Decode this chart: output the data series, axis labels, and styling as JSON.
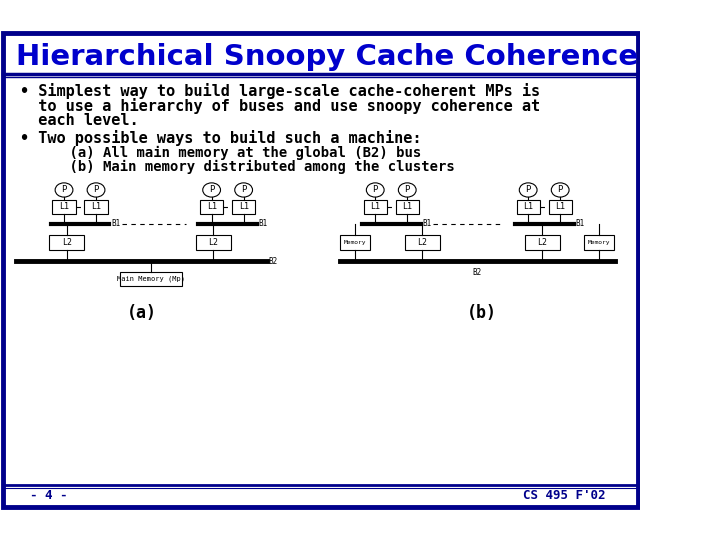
{
  "title": "Hierarchical Snoopy Cache Coherence",
  "title_color": "#0000CC",
  "bg_color": "#FFFFFF",
  "border_color": "#00008B",
  "bullet1_line1": "• Simplest way to build large-scale cache-coherent MPs is",
  "bullet1_line2": "  to use a hierarchy of buses and use snoopy coherence at",
  "bullet1_line3": "  each level.",
  "bullet2": "• Two possible ways to build such a machine:",
  "sub_a": "    (a) All main memory at the global (B2) bus",
  "sub_b": "    (b) Main memory distributed among the clusters",
  "label_a": "(a)",
  "label_b": "(b)",
  "footer_left": "- 4 -",
  "footer_right": "CS 495 F'02",
  "footer_color": "#00008B"
}
